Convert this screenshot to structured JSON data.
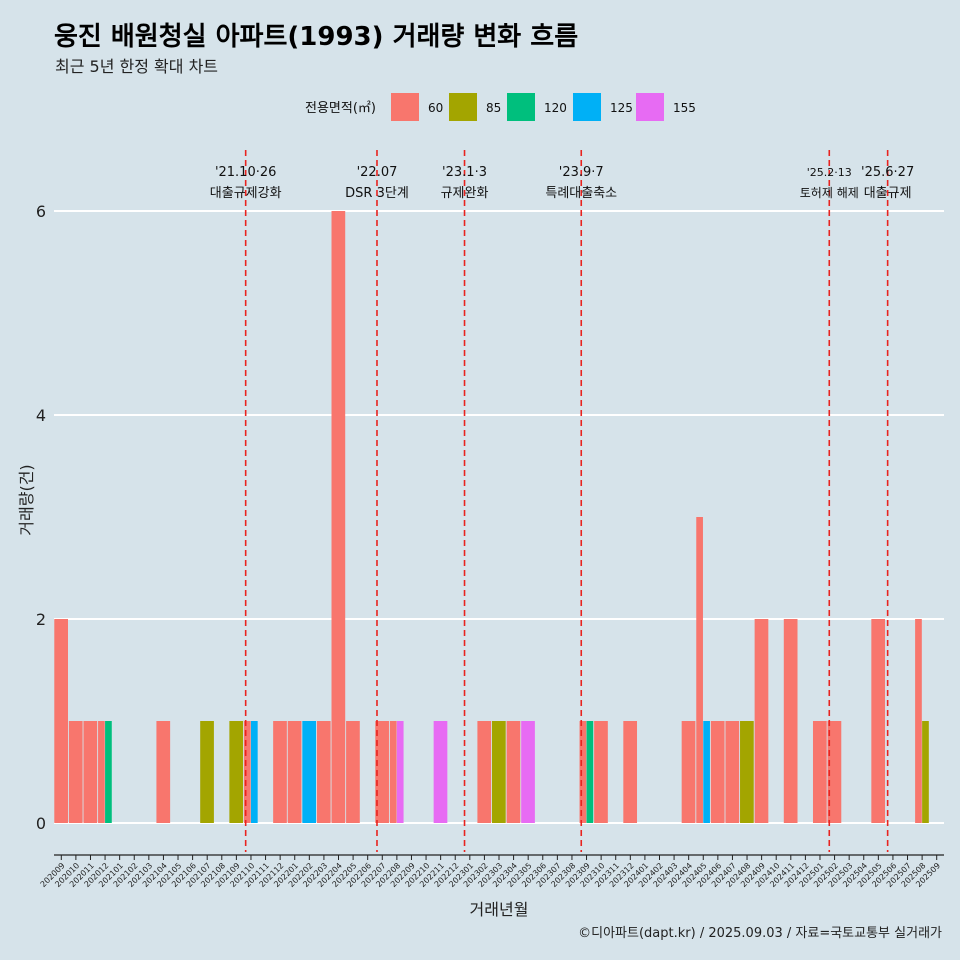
{
  "title": "웅진 배원청실 아파트(1993) 거래량 변화 흐름",
  "subtitle": "최근 5년 한정 확대 차트",
  "caption": "©디아파트(dapt.kr) / 2025.09.03 / 자료=국토교통부 실거래가",
  "colors": {
    "background": "#d6e3ea",
    "grid": "#ffffff",
    "event_line": "#e8231f"
  },
  "chart_data": {
    "type": "bar",
    "xlabel": "거래년월",
    "ylabel": "거래량(건)",
    "ylim": [
      0,
      6
    ],
    "yticks": [
      0,
      2,
      4,
      6
    ],
    "legend_title": "전용면적(㎡)",
    "legend_position": "top",
    "categories": [
      "202009",
      "202010",
      "202011",
      "202012",
      "202101",
      "202102",
      "202103",
      "202104",
      "202105",
      "202106",
      "202107",
      "202108",
      "202109",
      "202110",
      "202111",
      "202112",
      "202201",
      "202202",
      "202203",
      "202204",
      "202205",
      "202206",
      "202207",
      "202208",
      "202209",
      "202210",
      "202211",
      "202212",
      "202301",
      "202302",
      "202303",
      "202304",
      "202305",
      "202306",
      "202307",
      "202308",
      "202309",
      "202310",
      "202311",
      "202312",
      "202401",
      "202402",
      "202403",
      "202404",
      "202405",
      "202406",
      "202407",
      "202408",
      "202409",
      "202410",
      "202411",
      "202412",
      "202501",
      "202502",
      "202503",
      "202504",
      "202505",
      "202506",
      "202507",
      "202508",
      "202509"
    ],
    "series": [
      {
        "name": "60",
        "color": "#f8766d",
        "values": [
          2,
          1,
          1,
          1,
          0,
          0,
          0,
          1,
          0,
          0,
          0,
          0,
          0,
          1,
          0,
          1,
          1,
          0,
          1,
          6,
          1,
          0,
          1,
          1,
          0,
          0,
          0,
          0,
          0,
          1,
          0,
          1,
          0,
          0,
          0,
          0,
          1,
          1,
          0,
          1,
          0,
          0,
          0,
          1,
          3,
          1,
          1,
          0,
          2,
          0,
          2,
          0,
          1,
          1,
          0,
          0,
          2,
          0,
          0,
          2,
          0
        ]
      },
      {
        "name": "85",
        "color": "#a3a500",
        "values": [
          0,
          0,
          0,
          0,
          0,
          0,
          0,
          0,
          0,
          0,
          1,
          0,
          1,
          0,
          0,
          0,
          0,
          0,
          0,
          0,
          0,
          0,
          0,
          0,
          0,
          0,
          0,
          0,
          0,
          0,
          1,
          0,
          0,
          0,
          0,
          0,
          0,
          0,
          0,
          0,
          0,
          0,
          0,
          0,
          0,
          0,
          0,
          1,
          0,
          0,
          0,
          0,
          0,
          0,
          0,
          0,
          0,
          0,
          0,
          1,
          0
        ]
      },
      {
        "name": "120",
        "color": "#00bf7d",
        "values": [
          0,
          0,
          0,
          1,
          0,
          0,
          0,
          0,
          0,
          0,
          0,
          0,
          0,
          0,
          0,
          0,
          0,
          0,
          0,
          0,
          0,
          0,
          0,
          0,
          0,
          0,
          0,
          0,
          0,
          0,
          0,
          0,
          0,
          0,
          0,
          0,
          1,
          0,
          0,
          0,
          0,
          0,
          0,
          0,
          0,
          0,
          0,
          0,
          0,
          0,
          0,
          0,
          0,
          0,
          0,
          0,
          0,
          0,
          0,
          0,
          0
        ]
      },
      {
        "name": "125",
        "color": "#00b0f6",
        "values": [
          0,
          0,
          0,
          0,
          0,
          0,
          0,
          0,
          0,
          0,
          0,
          0,
          0,
          1,
          0,
          0,
          0,
          1,
          0,
          0,
          0,
          0,
          0,
          0,
          0,
          0,
          0,
          0,
          0,
          0,
          0,
          0,
          0,
          0,
          0,
          0,
          0,
          0,
          0,
          0,
          0,
          0,
          0,
          0,
          1,
          0,
          0,
          0,
          0,
          0,
          0,
          0,
          0,
          0,
          0,
          0,
          0,
          0,
          0,
          0,
          0
        ]
      },
      {
        "name": "155",
        "color": "#e76bf3",
        "values": [
          0,
          0,
          0,
          0,
          0,
          0,
          0,
          0,
          0,
          0,
          0,
          0,
          0,
          0,
          0,
          0,
          0,
          0,
          0,
          0,
          0,
          0,
          0,
          1,
          0,
          0,
          1,
          0,
          0,
          0,
          0,
          0,
          1,
          0,
          0,
          0,
          0,
          0,
          0,
          0,
          0,
          0,
          0,
          0,
          0,
          0,
          0,
          0,
          0,
          0,
          0,
          0,
          0,
          0,
          0,
          0,
          0,
          0,
          0,
          0,
          0
        ]
      }
    ],
    "annotations": [
      {
        "date": "'21.10·26",
        "label": "대출규제강화",
        "x": "202110"
      },
      {
        "date": "'22.07",
        "label": "DSR 3단계",
        "x": "202207"
      },
      {
        "date": "'23.1·3",
        "label": "규제완화",
        "x": "202301"
      },
      {
        "date": "'23.9·7",
        "label": "특례대출축소",
        "x": "202309"
      },
      {
        "date": "'25.2·13",
        "label": "토허제 해제",
        "x": "202502"
      },
      {
        "date": "'25.6·27",
        "label": "대출규제",
        "x": "202506"
      }
    ]
  }
}
